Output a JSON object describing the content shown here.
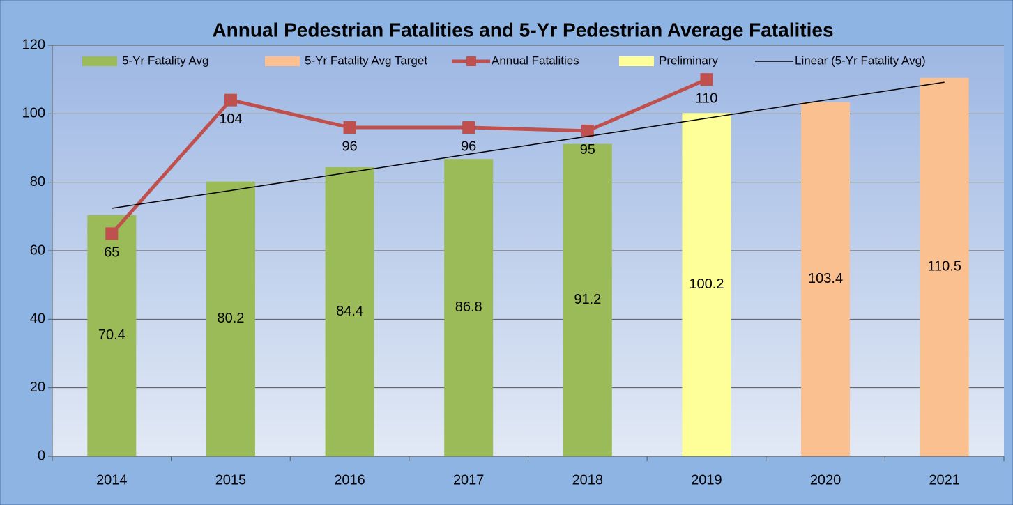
{
  "chart_data": {
    "type": "bar",
    "title": "Annual Pedestrian Fatalities and 5-Yr Pedestrian Average Fatalities",
    "categories": [
      "2014",
      "2015",
      "2016",
      "2017",
      "2018",
      "2019",
      "2020",
      "2021"
    ],
    "series": [
      {
        "name": "5-Yr Fatality Avg",
        "type": "bar",
        "color": "#9bbb59",
        "data_labels": true,
        "values": [
          70.4,
          80.2,
          84.4,
          86.8,
          91.2,
          null,
          null,
          null
        ]
      },
      {
        "name": "5-Yr Fatality Avg Target",
        "type": "bar",
        "color": "#fac090",
        "data_labels": true,
        "values": [
          null,
          null,
          null,
          null,
          null,
          null,
          103.4,
          110.5
        ]
      },
      {
        "name": "Annual Fatalities",
        "type": "line",
        "color": "#c0504d",
        "markers": true,
        "data_labels": true,
        "values": [
          65,
          104,
          96,
          96,
          95,
          110,
          null,
          null
        ]
      },
      {
        "name": "Preliminary",
        "type": "bar",
        "color": "#ffff99",
        "data_labels": true,
        "values": [
          null,
          null,
          null,
          null,
          null,
          100.2,
          null,
          null
        ]
      },
      {
        "name": "Linear (5-Yr Fatality Avg)",
        "type": "line",
        "color": "#000000",
        "markers": false,
        "data_labels": false,
        "values": [
          72.4,
          77.6,
          82.9,
          88.2,
          93.4,
          98.7,
          104.0,
          109.2
        ]
      }
    ],
    "ylim": [
      0,
      120
    ],
    "yticks": [
      0,
      20,
      40,
      60,
      80,
      100,
      120
    ],
    "grid": true,
    "legend": "top"
  }
}
